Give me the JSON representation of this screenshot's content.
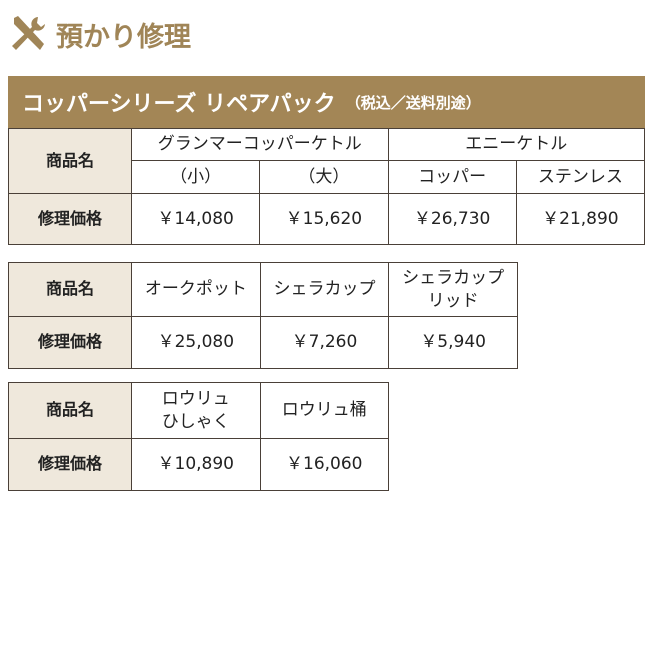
{
  "header": {
    "title": "預かり修理"
  },
  "banner": {
    "title": "コッパーシリーズ リペアパック",
    "note": "（税込／送料別途）"
  },
  "tables": [
    {
      "row_labels": [
        "商品名",
        "修理価格"
      ],
      "groups": [
        {
          "name": "グランマーコッパーケトル",
          "items": [
            {
              "name": "（小）",
              "price": "￥14,080"
            },
            {
              "name": "（大）",
              "price": "￥15,620"
            }
          ]
        },
        {
          "name": "エニーケトル",
          "items": [
            {
              "name": "コッパー",
              "price": "￥26,730"
            },
            {
              "name": "ステンレス",
              "price": "￥21,890"
            }
          ]
        }
      ]
    },
    {
      "row_labels": [
        "商品名",
        "修理価格"
      ],
      "items": [
        {
          "name": "オークポット",
          "price": "￥25,080"
        },
        {
          "name": "シェラカップ",
          "price": "￥7,260"
        },
        {
          "name": "シェラカップ\nリッド",
          "price": "￥5,940"
        }
      ]
    },
    {
      "row_labels": [
        "商品名",
        "修理価格"
      ],
      "items": [
        {
          "name": "ロウリュ\nひしゃく",
          "price": "￥10,890"
        },
        {
          "name": "ロウリュ桶",
          "price": "￥16,060"
        }
      ]
    }
  ]
}
